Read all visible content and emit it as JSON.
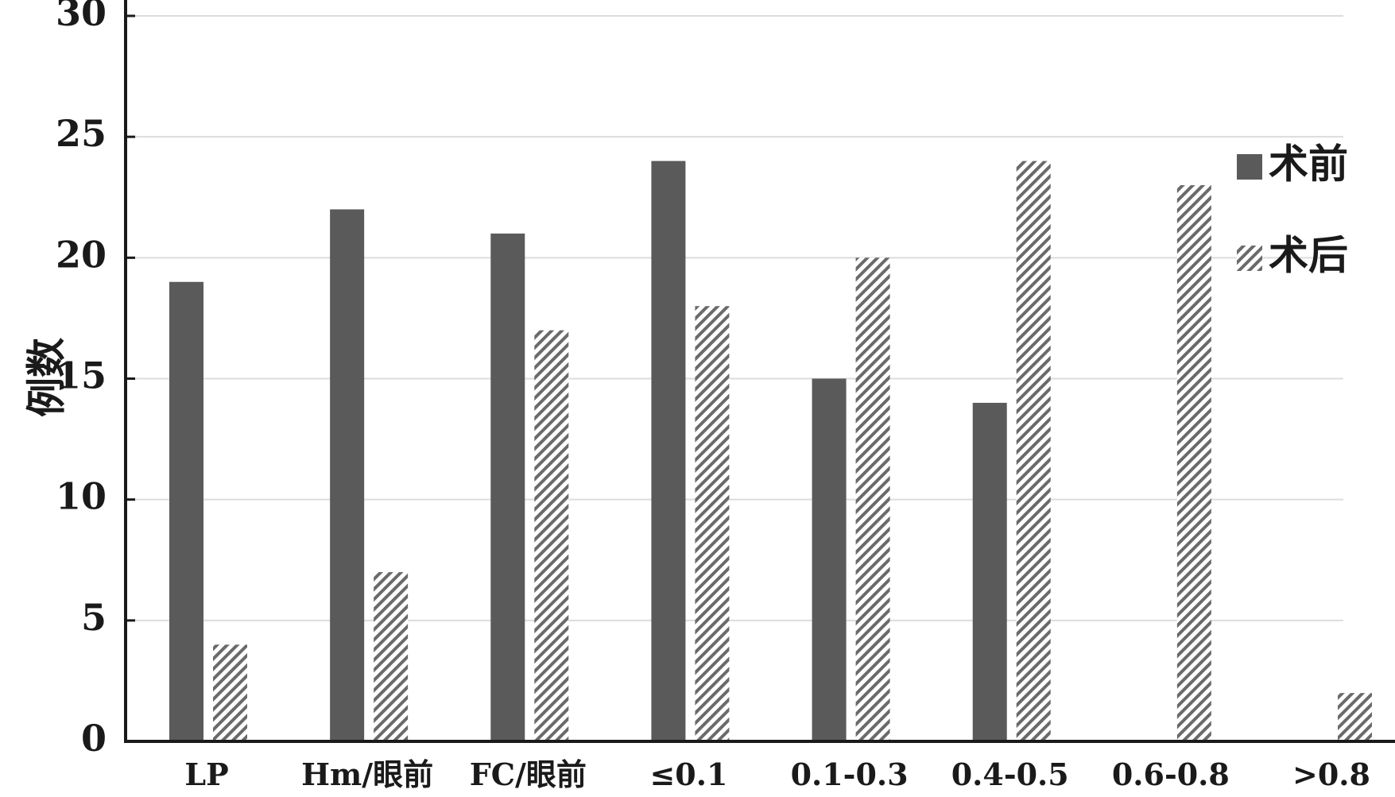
{
  "chart_data": {
    "type": "bar",
    "categories": [
      "LP",
      "Hm/眼前",
      "FC/眼前",
      "≤0.1",
      "0.1-0.3",
      "0.4-0.5",
      "0.6-0.8",
      ">0.8"
    ],
    "series": [
      {
        "name": "术前",
        "values": [
          19,
          22,
          21,
          24,
          15,
          14,
          0,
          0
        ],
        "color": "#5a5a5a",
        "pattern": "solid"
      },
      {
        "name": "术后",
        "values": [
          4,
          7,
          17,
          18,
          20,
          24,
          23,
          2
        ],
        "color": "#6a6a6a",
        "pattern": "diagonal-hatch"
      }
    ],
    "ylabel": "例数",
    "xlabel": "",
    "ylim": [
      0,
      30
    ],
    "yticks": [
      0,
      5,
      10,
      15,
      20,
      25,
      30
    ],
    "grid": true,
    "legend_position": "top-right"
  }
}
